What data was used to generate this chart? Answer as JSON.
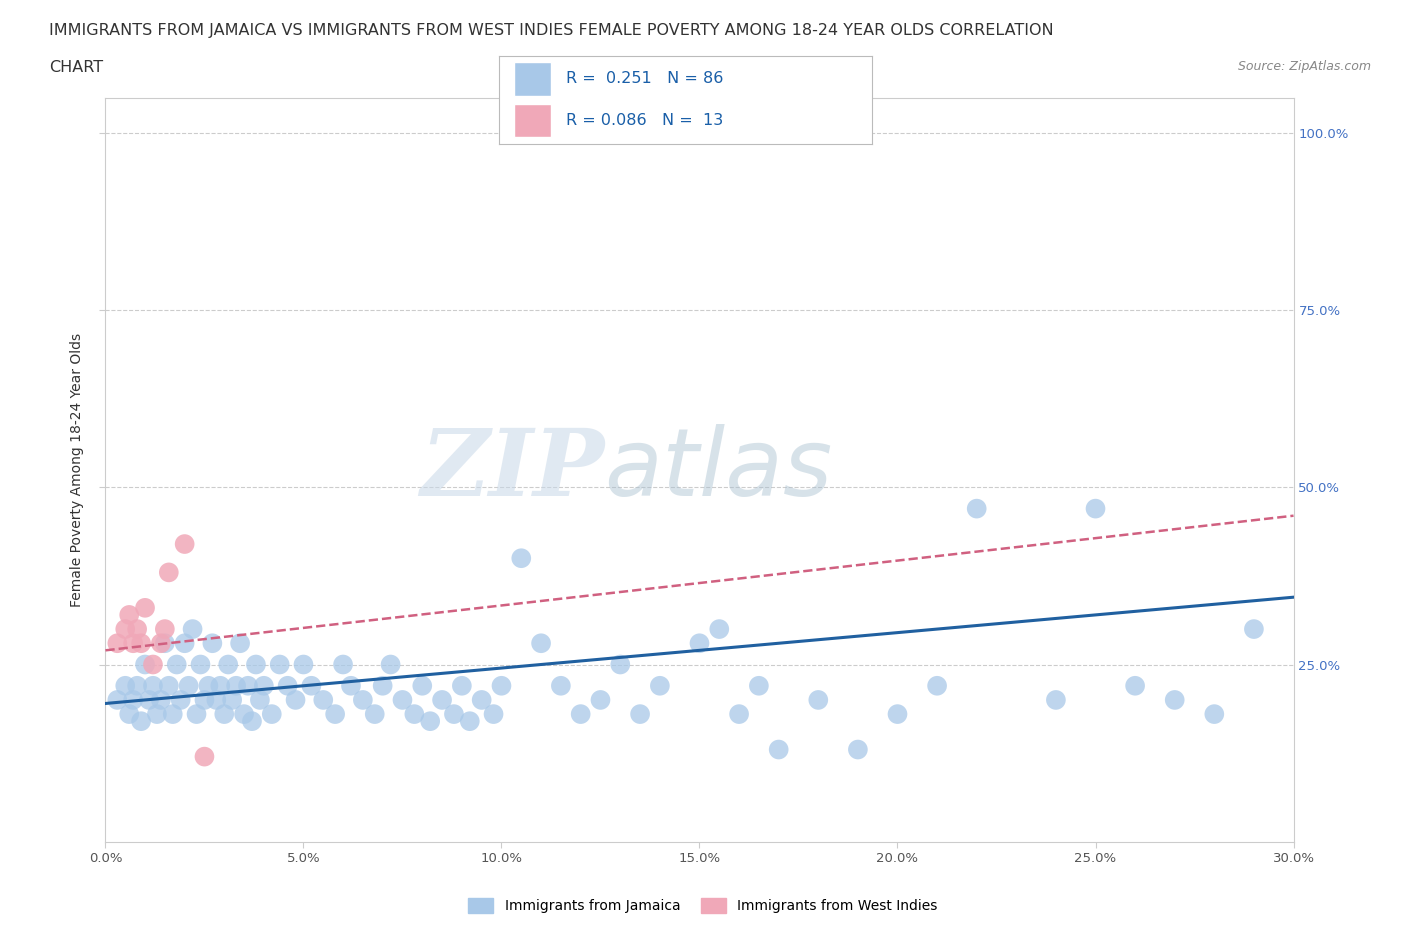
{
  "title_line1": "IMMIGRANTS FROM JAMAICA VS IMMIGRANTS FROM WEST INDIES FEMALE POVERTY AMONG 18-24 YEAR OLDS CORRELATION",
  "title_line2": "CHART",
  "source": "Source: ZipAtlas.com",
  "ylabel": "Female Poverty Among 18-24 Year Olds",
  "xlim": [
    0.0,
    0.3
  ],
  "ylim": [
    0.0,
    1.05
  ],
  "xtick_labels": [
    "0.0%",
    "5.0%",
    "10.0%",
    "15.0%",
    "20.0%",
    "25.0%",
    "30.0%"
  ],
  "xtick_vals": [
    0.0,
    0.05,
    0.1,
    0.15,
    0.2,
    0.25,
    0.3
  ],
  "ytick_vals": [
    0.25,
    0.5,
    0.75,
    1.0
  ],
  "right_ytick_labels": [
    "25.0%",
    "50.0%",
    "75.0%",
    "100.0%"
  ],
  "watermark_zip": "ZIP",
  "watermark_atlas": "atlas",
  "legend_text1": "R =  0.251   N = 86",
  "legend_text2": "R = 0.086   N =  13",
  "blue_color": "#a8c8e8",
  "pink_color": "#f0a8b8",
  "line_blue": "#2060a0",
  "line_pink": "#d06080",
  "jamaica_x": [
    0.003,
    0.005,
    0.006,
    0.007,
    0.008,
    0.009,
    0.01,
    0.011,
    0.012,
    0.013,
    0.014,
    0.015,
    0.016,
    0.017,
    0.018,
    0.019,
    0.02,
    0.021,
    0.022,
    0.023,
    0.024,
    0.025,
    0.026,
    0.027,
    0.028,
    0.029,
    0.03,
    0.031,
    0.032,
    0.033,
    0.034,
    0.035,
    0.036,
    0.037,
    0.038,
    0.039,
    0.04,
    0.042,
    0.044,
    0.046,
    0.048,
    0.05,
    0.052,
    0.055,
    0.058,
    0.06,
    0.062,
    0.065,
    0.068,
    0.07,
    0.072,
    0.075,
    0.078,
    0.08,
    0.082,
    0.085,
    0.088,
    0.09,
    0.092,
    0.095,
    0.098,
    0.1,
    0.105,
    0.11,
    0.115,
    0.12,
    0.125,
    0.13,
    0.135,
    0.14,
    0.15,
    0.155,
    0.16,
    0.165,
    0.17,
    0.18,
    0.19,
    0.2,
    0.21,
    0.22,
    0.24,
    0.25,
    0.26,
    0.27,
    0.28,
    0.29
  ],
  "jamaica_y": [
    0.2,
    0.22,
    0.18,
    0.2,
    0.22,
    0.17,
    0.25,
    0.2,
    0.22,
    0.18,
    0.2,
    0.28,
    0.22,
    0.18,
    0.25,
    0.2,
    0.28,
    0.22,
    0.3,
    0.18,
    0.25,
    0.2,
    0.22,
    0.28,
    0.2,
    0.22,
    0.18,
    0.25,
    0.2,
    0.22,
    0.28,
    0.18,
    0.22,
    0.17,
    0.25,
    0.2,
    0.22,
    0.18,
    0.25,
    0.22,
    0.2,
    0.25,
    0.22,
    0.2,
    0.18,
    0.25,
    0.22,
    0.2,
    0.18,
    0.22,
    0.25,
    0.2,
    0.18,
    0.22,
    0.17,
    0.2,
    0.18,
    0.22,
    0.17,
    0.2,
    0.18,
    0.22,
    0.4,
    0.28,
    0.22,
    0.18,
    0.2,
    0.25,
    0.18,
    0.22,
    0.28,
    0.3,
    0.18,
    0.22,
    0.13,
    0.2,
    0.13,
    0.18,
    0.22,
    0.47,
    0.2,
    0.47,
    0.22,
    0.2,
    0.18,
    0.3
  ],
  "westindies_x": [
    0.003,
    0.005,
    0.006,
    0.007,
    0.008,
    0.009,
    0.01,
    0.012,
    0.014,
    0.015,
    0.016,
    0.02,
    0.025
  ],
  "westindies_y": [
    0.28,
    0.3,
    0.32,
    0.28,
    0.3,
    0.28,
    0.33,
    0.25,
    0.28,
    0.3,
    0.38,
    0.42,
    0.12
  ],
  "jamaica_line_x0": 0.0,
  "jamaica_line_x1": 0.3,
  "jamaica_line_y0": 0.195,
  "jamaica_line_y1": 0.345,
  "westindies_line_x0": 0.0,
  "westindies_line_x1": 0.3,
  "westindies_line_y0": 0.27,
  "westindies_line_y1": 0.46,
  "grid_color": "#cccccc",
  "bg_color": "#ffffff",
  "title_color": "#333333",
  "source_color": "#888888",
  "ylabel_color": "#333333",
  "right_tick_color": "#4472c4",
  "title_fontsize": 11.5,
  "tick_fontsize": 9.5,
  "ylabel_fontsize": 10
}
